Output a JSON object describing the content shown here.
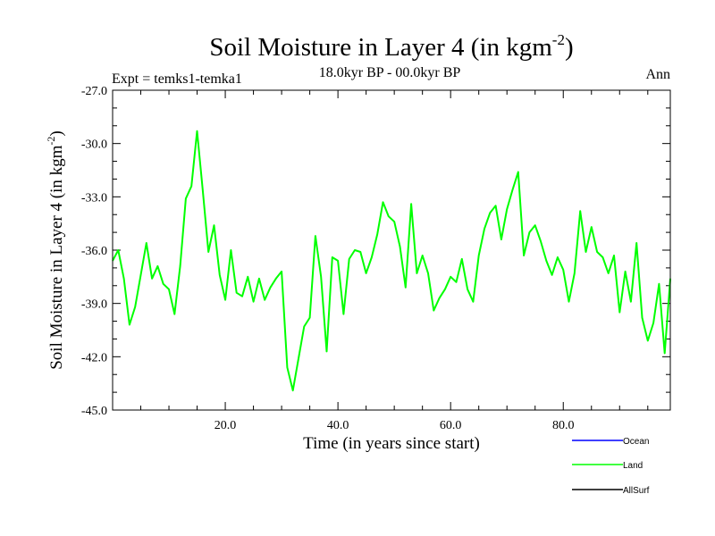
{
  "chart_data": {
    "type": "line",
    "title": "Soil Moisture in Layer 4 (in kgm",
    "title_sup": "-2",
    "title_close": ")",
    "subtitle_left": "Expt = temks1-temka1",
    "subtitle_center": "18.0kyr BP - 00.0kyr BP",
    "subtitle_right": "Ann",
    "xlabel": "Time (in years since start)",
    "ylabel": "Soil Moisture in Layer 4 (in kgm",
    "ylabel_sup": "-2",
    "ylabel_close": ")",
    "xlim": [
      0,
      99
    ],
    "ylim": [
      -45,
      -27
    ],
    "x_ticks": [
      20,
      40,
      60,
      80
    ],
    "x_tick_labels": [
      "20.0",
      "40.0",
      "60.0",
      "80.0"
    ],
    "y_ticks": [
      -45,
      -42,
      -39,
      -36,
      -33,
      -30,
      -27
    ],
    "y_tick_labels": [
      "-45.0",
      "-42.0",
      "-39.0",
      "-36.0",
      "-33.0",
      "-30.0",
      "-27.0"
    ],
    "legend": [
      {
        "name": "Ocean",
        "color": "#0000ff"
      },
      {
        "name": "Land",
        "color": "#00ff00"
      },
      {
        "name": "AllSurf",
        "color": "#000000"
      }
    ],
    "legend_placement": "bottom-right",
    "series": [
      {
        "name": "Land",
        "color": "#00ff00",
        "x_start": 0,
        "x_step": 1,
        "values": [
          -36.6,
          -36.0,
          -37.6,
          -40.2,
          -39.2,
          -37.4,
          -35.6,
          -37.6,
          -36.9,
          -37.9,
          -38.2,
          -39.6,
          -36.9,
          -33.1,
          -32.4,
          -29.3,
          -32.6,
          -36.1,
          -34.6,
          -37.4,
          -38.8,
          -36.0,
          -38.4,
          -38.6,
          -37.5,
          -38.9,
          -37.6,
          -38.8,
          -38.1,
          -37.6,
          -37.2,
          -42.6,
          -43.9,
          -42.1,
          -40.3,
          -39.8,
          -35.2,
          -37.5,
          -41.7,
          -36.4,
          -36.6,
          -39.6,
          -36.5,
          -36.0,
          -36.1,
          -37.3,
          -36.4,
          -35.1,
          -33.3,
          -34.1,
          -34.4,
          -35.8,
          -38.1,
          -33.4,
          -37.3,
          -36.3,
          -37.3,
          -39.4,
          -38.7,
          -38.2,
          -37.5,
          -37.8,
          -36.5,
          -38.2,
          -38.9,
          -36.3,
          -34.8,
          -33.9,
          -33.5,
          -35.4,
          -33.7,
          -32.6,
          -31.6,
          -36.3,
          -35.0,
          -34.6,
          -35.5,
          -36.6,
          -37.4,
          -36.4,
          -37.1,
          -38.9,
          -37.3,
          -33.8,
          -36.1,
          -34.7,
          -36.1,
          -36.4,
          -37.3,
          -36.3,
          -39.5,
          -37.2,
          -38.9,
          -35.6,
          -39.8,
          -41.1,
          -40.1,
          -37.9,
          -41.8,
          -37.6
        ]
      }
    ]
  }
}
